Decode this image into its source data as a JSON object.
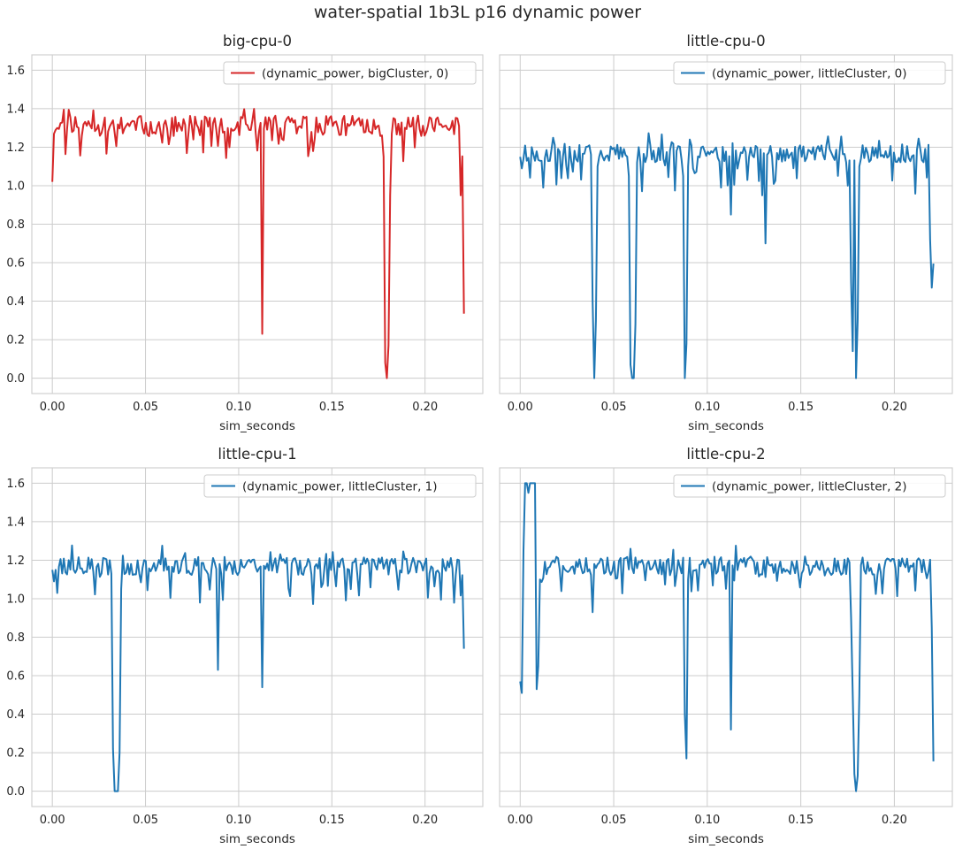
{
  "chart_data": {
    "title": "water-spatial 1b3L p16 dynamic power",
    "type": "line",
    "grid": true,
    "sharey": true,
    "ylim": [
      -0.08,
      1.68
    ],
    "xlim": [
      -0.011,
      0.231
    ],
    "yticks": [
      "0.0",
      "0.2",
      "0.4",
      "0.6",
      "0.8",
      "1.0",
      "1.2",
      "1.4",
      "1.6"
    ],
    "xticks": [
      "0.00",
      "0.05",
      "0.10",
      "0.15",
      "0.20"
    ],
    "panels": [
      {
        "title": "big-cpu-0",
        "xlabel": "sim_seconds",
        "legend_label": "(dynamic_power, bigCluster, 0)",
        "legend_loc": "upper right",
        "color": "#d62728",
        "base": 1.31,
        "noise": 0.045,
        "seed": 11,
        "start": [
          1.02,
          1.27,
          1.29,
          1.3
        ],
        "dips": [
          [
            0.1123,
            0.23
          ],
          [
            0.1778,
            1.15
          ],
          [
            0.1787,
            0.08
          ],
          [
            0.1796,
            0.0
          ],
          [
            0.1805,
            0.17
          ],
          [
            0.1814,
            0.95
          ],
          [
            0.2195,
            0.95
          ],
          [
            0.2205,
            0.45
          ],
          [
            0.2213,
            0.19
          ]
        ],
        "end": 0.335
      },
      {
        "title": "little-cpu-0",
        "xlabel": "sim_seconds",
        "legend_label": "(dynamic_power, littleCluster, 0)",
        "legend_loc": "upper right",
        "color": "#1f77b4",
        "base": 1.17,
        "noise": 0.04,
        "seed": 23,
        "start": [
          1.15,
          1.09,
          1.14
        ],
        "dips": [
          [
            0.0127,
            0.99
          ],
          [
            0.0388,
            0.4
          ],
          [
            0.0397,
            0.0
          ],
          [
            0.0406,
            0.3
          ],
          [
            0.0415,
            1.1
          ],
          [
            0.0578,
            1.05
          ],
          [
            0.0587,
            0.07
          ],
          [
            0.0596,
            0.0
          ],
          [
            0.0605,
            0.0
          ],
          [
            0.0614,
            0.28
          ],
          [
            0.0623,
            1.12
          ],
          [
            0.0868,
            1.05
          ],
          [
            0.0877,
            0.0
          ],
          [
            0.0886,
            0.18
          ],
          [
            0.0895,
            1.1
          ],
          [
            0.1123,
            0.85
          ],
          [
            0.1296,
            0.95
          ],
          [
            0.1313,
            0.7
          ],
          [
            0.175,
            1.0
          ],
          [
            0.1768,
            0.5
          ],
          [
            0.1777,
            0.14
          ],
          [
            0.1795,
            0.0
          ],
          [
            0.1804,
            0.3
          ],
          [
            0.1813,
            1.1
          ],
          [
            0.2187,
            0.72
          ],
          [
            0.2196,
            0.47
          ]
        ],
        "end": 0.595
      },
      {
        "title": "little-cpu-1",
        "xlabel": "sim_seconds",
        "legend_label": "(dynamic_power, littleCluster, 1)",
        "legend_loc": "upper right",
        "color": "#1f77b4",
        "base": 1.17,
        "noise": 0.04,
        "seed": 37,
        "start": [
          1.15,
          1.09,
          1.15
        ],
        "dips": [
          [
            0.0308,
            1.2
          ],
          [
            0.0317,
            1.13
          ],
          [
            0.0326,
            0.22
          ],
          [
            0.0335,
            0.0
          ],
          [
            0.0344,
            0.0
          ],
          [
            0.0353,
            0.0
          ],
          [
            0.0362,
            0.2
          ],
          [
            0.0371,
            1.05
          ],
          [
            0.0794,
            0.98
          ],
          [
            0.0886,
            0.63
          ],
          [
            0.1123,
            0.54
          ]
        ],
        "end": 0.74
      },
      {
        "title": "little-cpu-2",
        "xlabel": "sim_seconds",
        "legend_label": "(dynamic_power, littleCluster, 2)",
        "legend_loc": "upper right",
        "color": "#1f77b4",
        "base": 1.17,
        "noise": 0.04,
        "seed": 53,
        "start": [
          0.57,
          0.51,
          1.25,
          1.6,
          1.6,
          1.55,
          1.6,
          1.6,
          1.6,
          1.6,
          0.53,
          0.65,
          1.1
        ],
        "dips": [
          [
            0.0386,
            0.93
          ],
          [
            0.0877,
            0.4
          ],
          [
            0.0886,
            0.17
          ],
          [
            0.0895,
            1.1
          ],
          [
            0.1123,
            0.32
          ],
          [
            0.1768,
            0.9
          ],
          [
            0.1777,
            0.5
          ],
          [
            0.1786,
            0.09
          ],
          [
            0.1795,
            0.0
          ],
          [
            0.1804,
            0.08
          ],
          [
            0.1813,
            0.5
          ],
          [
            0.2204,
            0.85
          ]
        ],
        "end": 0.155
      }
    ]
  }
}
